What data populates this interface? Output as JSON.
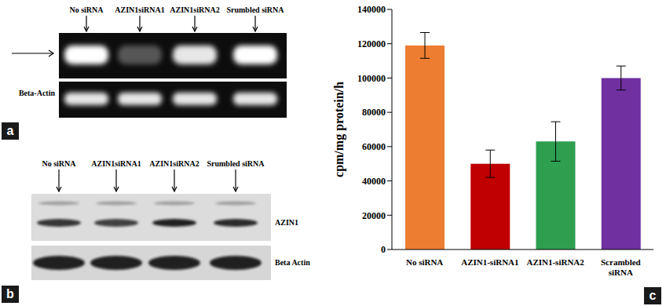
{
  "gel_panel": {
    "letter": "a",
    "lanes": [
      "No siRNA",
      "AZIN1siRNA1",
      "AZIN1siRNA2",
      "Srumbled siRNA"
    ],
    "row_labels": [
      "Beta-Actin"
    ]
  },
  "blot_panel": {
    "letter": "b",
    "lanes": [
      "No siRNA",
      "AZIN1siRNA1",
      "AZIN1siRNA2",
      "Srumbled siRNA"
    ],
    "row_labels": [
      "AZIN1",
      "Beta Actin"
    ]
  },
  "chart_panel_letter": "c",
  "chart_data": {
    "type": "bar",
    "y_label": "cpm/mg protein/h",
    "categories": [
      "No siRNA",
      "AZIN1-siRNA1",
      "AZIN1-siRNA2",
      "Scrambled siRNA"
    ],
    "values": [
      119000,
      50000,
      63000,
      100000
    ],
    "errors": [
      7500,
      8000,
      11500,
      7000
    ],
    "colors": [
      "#ed7d31",
      "#c00000",
      "#2e9e4f",
      "#7030a0"
    ],
    "ylim": [
      0,
      140000
    ],
    "yticks": [
      0,
      20000,
      40000,
      60000,
      80000,
      100000,
      120000,
      140000
    ],
    "grid": false
  }
}
